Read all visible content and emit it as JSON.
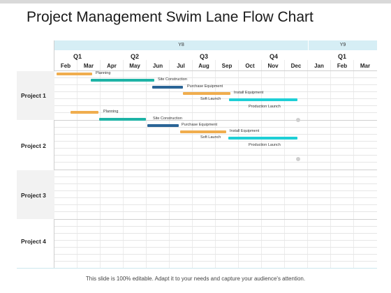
{
  "slide": {
    "title": "Project Management Swim Lane Flow Chart",
    "footer": "This slide is 100% editable. Adapt it to your needs and capture your audience's attention."
  },
  "timeline": {
    "years": [
      "Y8",
      "Y9"
    ],
    "quarters": [
      "Q1",
      "Q2",
      "Q3",
      "Q4",
      "Q1"
    ],
    "months": [
      "Feb",
      "Mar",
      "Apr",
      "May",
      "Jun",
      "Jul",
      "Aug",
      "Sep",
      "Oct",
      "Nov",
      "Dec",
      "Jan",
      "Feb",
      "Mar"
    ]
  },
  "lanes": [
    {
      "label": "Project 1"
    },
    {
      "label": "Project 2"
    },
    {
      "label": "Project 3"
    },
    {
      "label": "Project 4"
    }
  ],
  "tasks": {
    "p1": {
      "planning": "Planning",
      "site_construction": "Site Construction",
      "purchase_equipment": "Purchase Equipment",
      "install_equipment": "Install Equipment",
      "soft_launch": "Soft Launch",
      "production_launch": "Production Launch"
    },
    "p2": {
      "planning": "Planning",
      "site_construction": "Site Construction",
      "purchase_equipment": "Purchase Equipment",
      "install_equipment": "Install Equipment",
      "soft_launch": "Soft Launch",
      "production_launch": "Production Launch"
    }
  },
  "colors": {
    "planning": "#f0ad4e",
    "site_construction": "#1eb3a6",
    "purchase_equipment": "#2a6496",
    "install_equipment": "#f0ad4e",
    "soft_launch": "#1ecfd6",
    "year_band": "#d6eef5"
  }
}
